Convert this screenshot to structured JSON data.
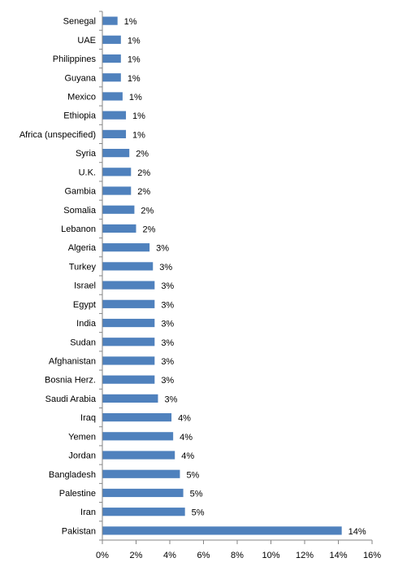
{
  "chart_data": {
    "type": "bar",
    "orientation": "horizontal",
    "title": "",
    "xlabel": "",
    "ylabel": "",
    "xlim": [
      0,
      16
    ],
    "x_ticks": [
      0,
      2,
      4,
      6,
      8,
      10,
      12,
      14,
      16
    ],
    "x_tick_labels": [
      "0%",
      "2%",
      "4%",
      "6%",
      "8%",
      "10%",
      "12%",
      "14%",
      "16%"
    ],
    "grid": false,
    "legend": "none",
    "bar_color": "#4f81bd",
    "categories": [
      "Senegal",
      "UAE",
      "Philippines",
      "Guyana",
      "Mexico",
      "Ethiopia",
      "Africa (unspecified)",
      "Syria",
      "U.K.",
      "Gambia",
      "Somalia",
      "Lebanon",
      "Algeria",
      "Turkey",
      "Israel",
      "Egypt",
      "India",
      "Sudan",
      "Afghanistan",
      "Bosnia Herz.",
      "Saudi Arabia",
      "Iraq",
      "Yemen",
      "Jordan",
      "Bangladesh",
      "Palestine",
      "Iran",
      "Pakistan"
    ],
    "values": [
      0.9,
      1.1,
      1.1,
      1.1,
      1.2,
      1.4,
      1.4,
      1.6,
      1.7,
      1.7,
      1.9,
      2.0,
      2.8,
      3.0,
      3.1,
      3.1,
      3.1,
      3.1,
      3.1,
      3.1,
      3.3,
      4.1,
      4.2,
      4.3,
      4.6,
      4.8,
      4.9,
      14.2
    ],
    "data_labels": [
      "1%",
      "1%",
      "1%",
      "1%",
      "1%",
      "1%",
      "1%",
      "2%",
      "2%",
      "2%",
      "2%",
      "2%",
      "3%",
      "3%",
      "3%",
      "3%",
      "3%",
      "3%",
      "3%",
      "3%",
      "3%",
      "4%",
      "4%",
      "4%",
      "5%",
      "5%",
      "5%",
      "14%"
    ]
  }
}
